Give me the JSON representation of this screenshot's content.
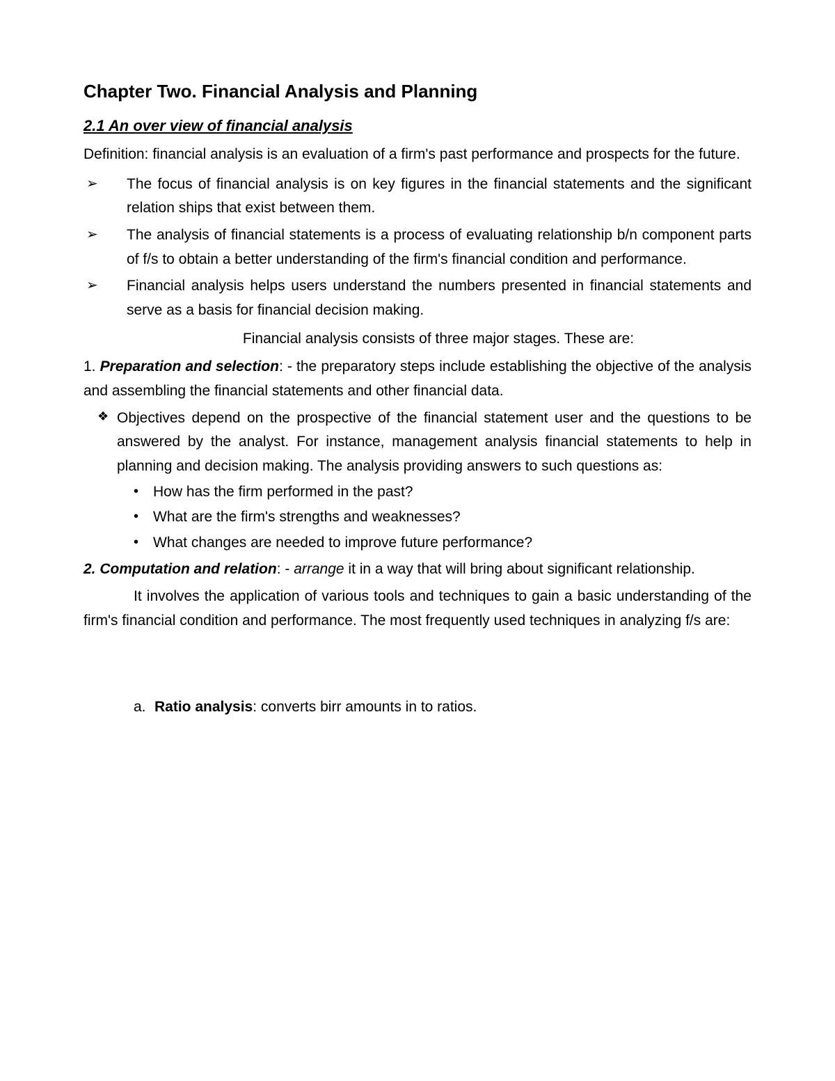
{
  "chapterTitle": "Chapter Two. Financial Analysis and Planning",
  "sectionTitle": "2.1 An over view of financial analysis",
  "definition": "Definition: financial analysis is an evaluation of a firm's past performance and prospects for the future.",
  "arrowBullets": [
    "The focus of financial analysis is on key figures in the financial statements and the significant relation ships that exist between them.",
    "The analysis of financial statements is a process of evaluating relationship b/n component parts of f/s to obtain a better understanding of the firm's financial condition and performance.",
    "Financial analysis helps users understand the numbers presented in financial statements and serve as a basis for financial decision making."
  ],
  "stagesIntro": "Financial analysis consists of three major stages. These are:",
  "stage1": {
    "num": "1. ",
    "label": "Preparation and selection",
    "text": ": - the preparatory steps include establishing the objective of the analysis and assembling the financial statements and other financial data."
  },
  "diamondText": "Objectives depend on the prospective of the financial statement user and the questions to be answered by the analyst. For instance, management analysis financial statements to help in planning and decision making. The analysis providing answers to such questions as:",
  "questions": [
    "How has the firm performed in the past?",
    "What are the firm's strengths and weaknesses?",
    "What changes are needed to improve future performance?"
  ],
  "stage2": {
    "label": "2. Computation and relation",
    "textPrefix": ": - ",
    "arrange": "arrange",
    "textSuffix": " it in a way that will bring about significant relationship."
  },
  "stage2Para": "It involves the application of various tools and techniques to gain a basic understanding of the firm's financial condition and performance. The most frequently used techniques in analyzing f/s are:",
  "alphaItem": {
    "letter": "a.",
    "label": "Ratio analysis",
    "text": ": converts birr amounts in to ratios."
  },
  "glyphs": {
    "arrow": "➢",
    "diamond": "❖",
    "dot": "•"
  },
  "styling": {
    "pageWidth": 1200,
    "pageHeight": 1553,
    "background": "#ffffff",
    "textColor": "#000000",
    "bodyFontSize": 21,
    "titleFontSize": 26,
    "sectionFontSize": 22,
    "lineHeight": 1.65,
    "fontFamily": "Verdana, Geneva, sans-serif"
  }
}
